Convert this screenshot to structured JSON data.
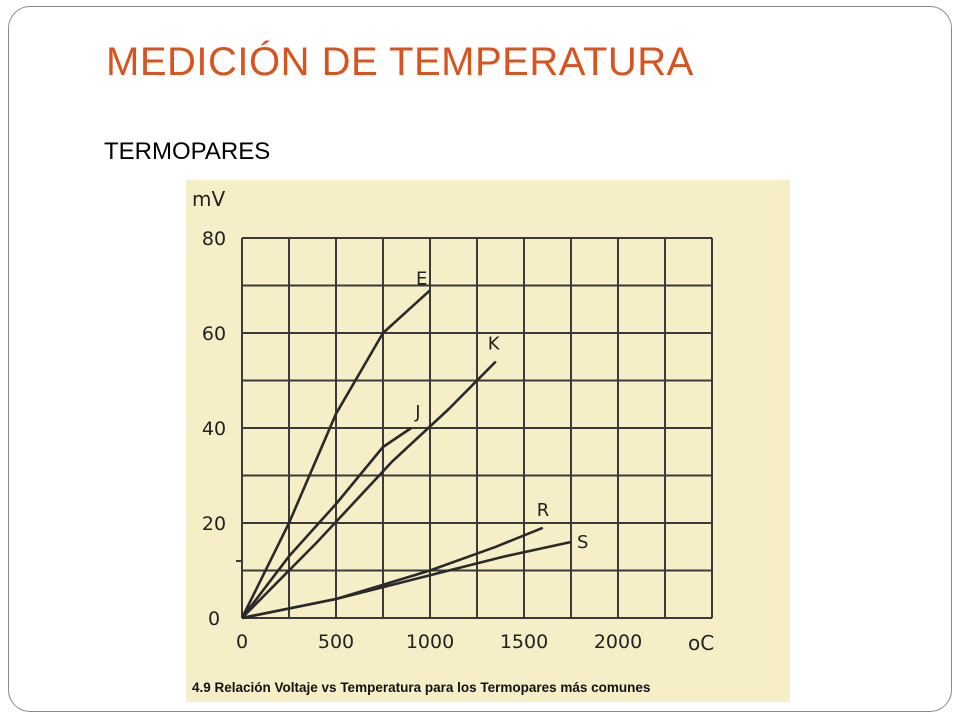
{
  "slide": {
    "title": "MEDICIÓN DE TEMPERATURA",
    "subtitle": "TERMOPARES"
  },
  "colors": {
    "title": "#d9531e",
    "paper": "#f6eec7",
    "grid": "#3a3a3a",
    "curve": "#2a2a2a"
  },
  "chart_data": {
    "type": "line",
    "title": "",
    "ylabel": "mV",
    "xlabel": "oC",
    "xlim": [
      0,
      2500
    ],
    "ylim": [
      0,
      80
    ],
    "x_ticks": [
      0,
      500,
      1000,
      1500,
      2000
    ],
    "x_tick_labels": [
      "0",
      "500",
      "1000",
      "1500",
      "2000"
    ],
    "y_ticks": [
      0,
      20,
      40,
      60,
      80
    ],
    "y_tick_labels": [
      "0",
      "20",
      "40",
      "60",
      "80"
    ],
    "grid": true,
    "caption": "4.9 Relación Voltaje vs Temperatura para los Termopares más comunes",
    "series": [
      {
        "name": "E",
        "points": [
          [
            0,
            0
          ],
          [
            250,
            20
          ],
          [
            500,
            43
          ],
          [
            750,
            60
          ],
          [
            1000,
            69
          ]
        ]
      },
      {
        "name": "J",
        "points": [
          [
            0,
            0
          ],
          [
            250,
            13
          ],
          [
            500,
            24
          ],
          [
            750,
            36
          ],
          [
            900,
            40
          ]
        ]
      },
      {
        "name": "K",
        "points": [
          [
            0,
            0
          ],
          [
            400,
            16
          ],
          [
            800,
            33
          ],
          [
            1100,
            44
          ],
          [
            1350,
            54
          ]
        ]
      },
      {
        "name": "R",
        "points": [
          [
            0,
            0
          ],
          [
            500,
            4
          ],
          [
            1000,
            10
          ],
          [
            1350,
            15
          ],
          [
            1600,
            19
          ]
        ]
      },
      {
        "name": "S",
        "points": [
          [
            0,
            0
          ],
          [
            500,
            4
          ],
          [
            1000,
            9
          ],
          [
            1400,
            13
          ],
          [
            1750,
            16
          ]
        ]
      }
    ]
  }
}
